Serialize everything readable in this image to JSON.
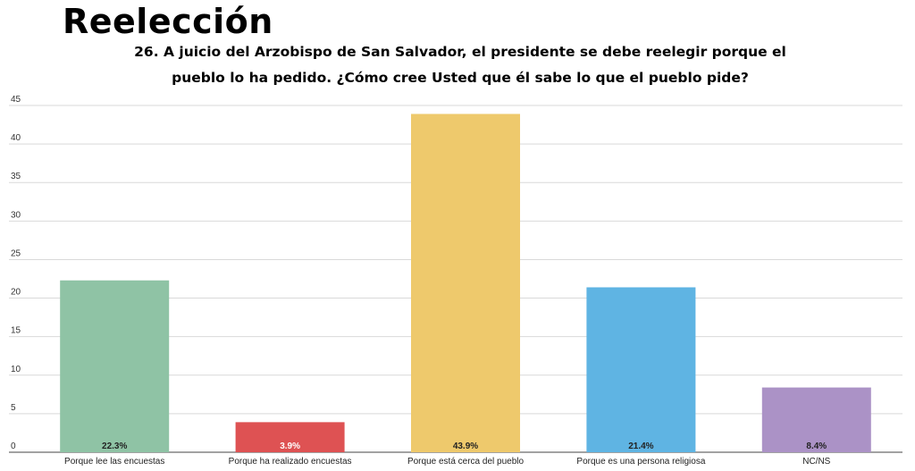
{
  "header": {
    "title": "Reelección",
    "question_line1": "26. A juicio del Arzobispo de San Salvador, el presidente se debe reelegir porque el",
    "question_line2": "pueblo lo ha pedido. ¿Cómo cree Usted que él sabe lo que el pueblo pide?"
  },
  "chart_data": {
    "type": "bar",
    "categories": [
      "Porque lee las encuestas",
      "Porque ha realizado encuestas",
      "Porque está cerca del pueblo",
      "Porque es una persona religiosa",
      "NC/NS"
    ],
    "values": [
      22.3,
      3.9,
      43.9,
      21.4,
      8.4
    ],
    "value_labels": [
      "22.3%",
      "3.9%",
      "43.9%",
      "21.4%",
      "8.4%"
    ],
    "colors": [
      "#8fc3a5",
      "#de5253",
      "#eec96c",
      "#5fb4e3",
      "#ab92c6"
    ],
    "ylim": [
      0,
      45
    ],
    "yticks": [
      0,
      5,
      10,
      15,
      20,
      25,
      30,
      35,
      40,
      45
    ],
    "grid": true,
    "xlabel": "",
    "ylabel": ""
  }
}
